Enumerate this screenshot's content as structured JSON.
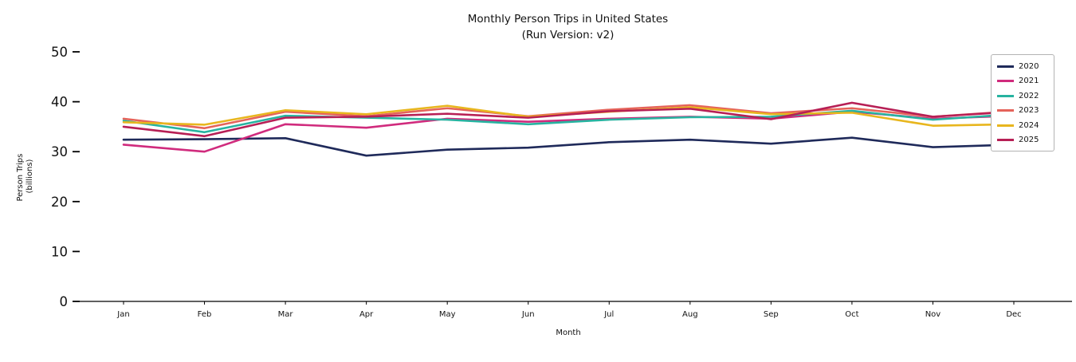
{
  "title": "Monthly Person Trips in United States",
  "subtitle": "(Run Version: v2)",
  "axes": {
    "xlabel": "Month",
    "ylabel_line1": "Person Trips",
    "ylabel_line2": "(billions)"
  },
  "chart_data": {
    "type": "line",
    "x": [
      "Jan",
      "Feb",
      "Mar",
      "Apr",
      "May",
      "Jun",
      "Jul",
      "Aug",
      "Sep",
      "Oct",
      "Nov",
      "Dec"
    ],
    "xlabel": "Month",
    "ylabel": "Person Trips (billions)",
    "ylim": [
      0,
      50
    ],
    "yticks": [
      0,
      10,
      20,
      30,
      40,
      50
    ],
    "grid": false,
    "legend_position": "upper right",
    "series": [
      {
        "name": "2020",
        "color": "#1f2a5a",
        "values": [
          32.4,
          32.5,
          32.7,
          29.2,
          30.4,
          30.8,
          31.9,
          32.4,
          31.6,
          32.8,
          30.9,
          31.4
        ]
      },
      {
        "name": "2021",
        "color": "#d02b7d",
        "values": [
          31.4,
          30.0,
          35.5,
          34.8,
          36.6,
          36.0,
          36.6,
          37.0,
          36.6,
          38.0,
          36.6,
          37.2
        ]
      },
      {
        "name": "2022",
        "color": "#27b3a0",
        "values": [
          36.2,
          33.9,
          37.2,
          36.8,
          36.4,
          35.5,
          36.4,
          36.9,
          37.0,
          38.2,
          36.4,
          37.5
        ]
      },
      {
        "name": "2023",
        "color": "#e5635a",
        "values": [
          36.6,
          34.7,
          38.0,
          37.1,
          38.7,
          37.1,
          38.4,
          39.3,
          37.7,
          38.7,
          37.0,
          38.1
        ]
      },
      {
        "name": "2024",
        "color": "#e8b61e",
        "values": [
          35.9,
          35.4,
          38.3,
          37.5,
          39.2,
          37.0,
          38.0,
          38.9,
          37.5,
          37.8,
          35.2,
          35.5
        ]
      },
      {
        "name": "2025",
        "color": "#b71f55",
        "values": [
          35.0,
          33.1,
          36.8,
          37.0,
          37.6,
          36.8,
          38.1,
          38.6,
          36.5,
          39.8,
          37.0,
          38.0
        ]
      }
    ]
  }
}
